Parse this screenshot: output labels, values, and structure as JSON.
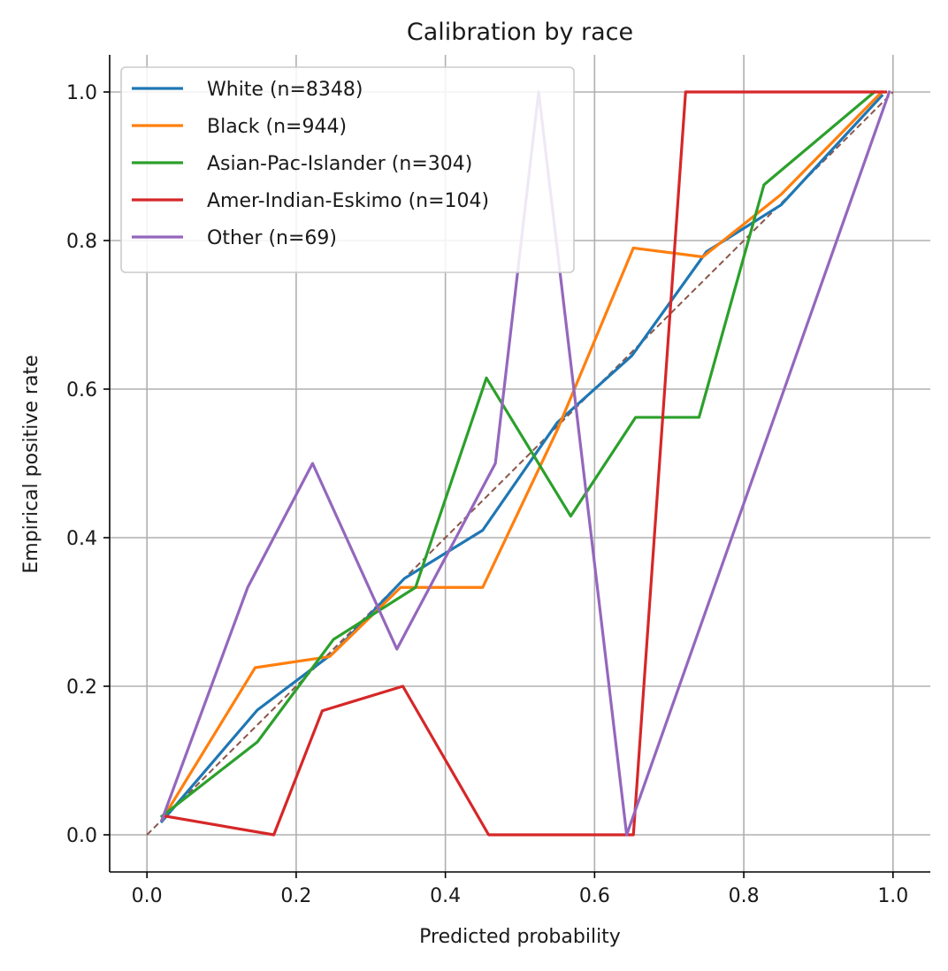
{
  "chart_data": {
    "type": "line",
    "title": "Calibration by race",
    "xlabel": "Predicted probability",
    "ylabel": "Empirical positive rate",
    "xlim": [
      -0.05,
      1.05
    ],
    "ylim": [
      -0.05,
      1.05
    ],
    "xticks": [
      0.0,
      0.2,
      0.4,
      0.6,
      0.8,
      1.0
    ],
    "yticks": [
      0.0,
      0.2,
      0.4,
      0.6,
      0.8,
      1.0
    ],
    "xtick_labels": [
      "0.0",
      "0.2",
      "0.4",
      "0.6",
      "0.8",
      "1.0"
    ],
    "ytick_labels": [
      "0.0",
      "0.2",
      "0.4",
      "0.6",
      "0.8",
      "1.0"
    ],
    "grid": true,
    "legend_position": "top-left",
    "series": [
      {
        "name": "White (n=8348)",
        "color": "#1f77b4",
        "x": [
          0.02,
          0.148,
          0.25,
          0.345,
          0.45,
          0.55,
          0.65,
          0.75,
          0.85,
          0.985
        ],
        "y": [
          0.018,
          0.168,
          0.245,
          0.345,
          0.41,
          0.555,
          0.645,
          0.785,
          0.848,
          0.995
        ]
      },
      {
        "name": "Black (n=944)",
        "color": "#ff7f0e",
        "x": [
          0.02,
          0.145,
          0.245,
          0.34,
          0.45,
          0.55,
          0.652,
          0.745,
          0.85,
          0.985
        ],
        "y": [
          0.02,
          0.225,
          0.24,
          0.333,
          0.333,
          0.545,
          0.79,
          0.778,
          0.862,
          1.0
        ]
      },
      {
        "name": "Asian-Pac-Islander (n=304)",
        "color": "#2ca02c",
        "x": [
          0.02,
          0.148,
          0.25,
          0.36,
          0.455,
          0.568,
          0.655,
          0.74,
          0.827,
          0.975
        ],
        "y": [
          0.025,
          0.125,
          0.263,
          0.333,
          0.615,
          0.429,
          0.562,
          0.562,
          0.875,
          1.0
        ]
      },
      {
        "name": "Amer-Indian-Eskimo (n=104)",
        "color": "#d62728",
        "x": [
          0.025,
          0.17,
          0.235,
          0.343,
          0.458,
          0.652,
          0.722,
          0.99
        ],
        "y": [
          0.025,
          0.0,
          0.167,
          0.2,
          0.0,
          0.0,
          1.0,
          1.0
        ]
      },
      {
        "name": "Other (n=69)",
        "color": "#9467bd",
        "x": [
          0.02,
          0.135,
          0.222,
          0.335,
          0.467,
          0.525,
          0.643,
          0.995
        ],
        "y": [
          0.02,
          0.333,
          0.5,
          0.25,
          0.5,
          1.0,
          0.0,
          1.0
        ]
      }
    ],
    "reference_line": {
      "x": [
        0.0,
        1.0
      ],
      "y": [
        0.0,
        1.0
      ],
      "color": "#8c564b",
      "style": "dashed"
    }
  }
}
